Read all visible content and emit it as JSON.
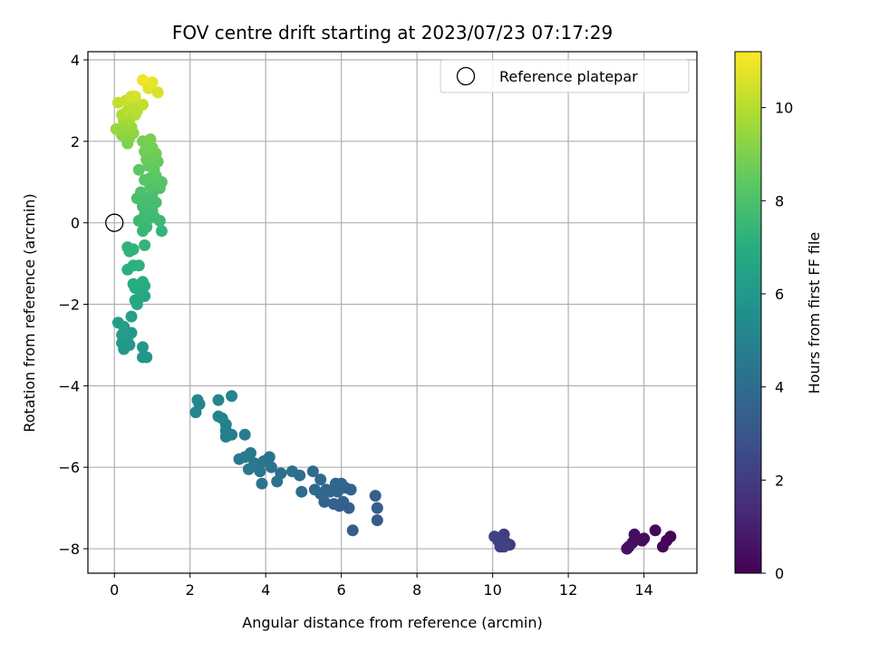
{
  "chart_data": {
    "type": "scatter",
    "title": "FOV centre drift starting at 2023/07/23 07:17:29",
    "xlabel": "Angular distance from reference (arcmin)",
    "ylabel": "Rotation from reference (arcmin)",
    "xlim": [
      -0.7,
      15.4
    ],
    "ylim": [
      -8.6,
      4.2
    ],
    "xticks": [
      0,
      2,
      4,
      6,
      8,
      10,
      12,
      14
    ],
    "yticks": [
      -8,
      -6,
      -4,
      -2,
      0,
      2,
      4
    ],
    "xtick_labels": [
      "0",
      "2",
      "4",
      "6",
      "8",
      "10",
      "12",
      "14"
    ],
    "ytick_labels": [
      "−8",
      "−6",
      "−4",
      "−2",
      "0",
      "2",
      "4"
    ],
    "grid": true,
    "legend": {
      "placement": "top-right",
      "label": "Reference platepar"
    },
    "reference_point": {
      "x": 0,
      "y": 0
    },
    "colorbar": {
      "label": "Hours from first FF file",
      "colormap": "viridis",
      "min": 0,
      "max": 11.2,
      "ticks": [
        0,
        2,
        4,
        6,
        8,
        10
      ],
      "tick_labels": [
        "0",
        "2",
        "4",
        "6",
        "8",
        "10"
      ]
    },
    "points": [
      {
        "x": 14.7,
        "y": -7.7,
        "c": 0.05
      },
      {
        "x": 14.6,
        "y": -7.8,
        "c": 0.1
      },
      {
        "x": 14.5,
        "y": -7.95,
        "c": 0.15
      },
      {
        "x": 14.3,
        "y": -7.55,
        "c": 0.2
      },
      {
        "x": 14.0,
        "y": -7.75,
        "c": 0.3
      },
      {
        "x": 13.95,
        "y": -7.8,
        "c": 0.35
      },
      {
        "x": 13.75,
        "y": -7.65,
        "c": 0.4
      },
      {
        "x": 13.7,
        "y": -7.85,
        "c": 0.45
      },
      {
        "x": 13.6,
        "y": -7.95,
        "c": 0.5
      },
      {
        "x": 13.55,
        "y": -8.0,
        "c": 0.55
      },
      {
        "x": 10.45,
        "y": -7.9,
        "c": 1.9
      },
      {
        "x": 10.35,
        "y": -7.85,
        "c": 1.95
      },
      {
        "x": 10.3,
        "y": -7.65,
        "c": 2.0
      },
      {
        "x": 10.25,
        "y": -7.75,
        "c": 2.05
      },
      {
        "x": 10.2,
        "y": -7.95,
        "c": 2.1
      },
      {
        "x": 10.15,
        "y": -7.8,
        "c": 2.15
      },
      {
        "x": 10.05,
        "y": -7.7,
        "c": 2.2
      },
      {
        "x": 10.3,
        "y": -7.95,
        "c": 2.25
      },
      {
        "x": 6.3,
        "y": -7.55,
        "c": 3.3
      },
      {
        "x": 6.95,
        "y": -7.3,
        "c": 3.3
      },
      {
        "x": 6.95,
        "y": -7.0,
        "c": 3.35
      },
      {
        "x": 6.9,
        "y": -6.7,
        "c": 3.35
      },
      {
        "x": 6.2,
        "y": -7.0,
        "c": 3.4
      },
      {
        "x": 6.05,
        "y": -6.85,
        "c": 3.45
      },
      {
        "x": 5.95,
        "y": -6.95,
        "c": 3.5
      },
      {
        "x": 5.8,
        "y": -6.9,
        "c": 3.5
      },
      {
        "x": 5.55,
        "y": -6.85,
        "c": 3.55
      },
      {
        "x": 6.25,
        "y": -6.55,
        "c": 3.6
      },
      {
        "x": 6.1,
        "y": -6.5,
        "c": 3.6
      },
      {
        "x": 6.0,
        "y": -6.4,
        "c": 3.65
      },
      {
        "x": 5.85,
        "y": -6.4,
        "c": 3.7
      },
      {
        "x": 5.9,
        "y": -6.6,
        "c": 3.7
      },
      {
        "x": 5.7,
        "y": -6.6,
        "c": 3.75
      },
      {
        "x": 5.6,
        "y": -6.55,
        "c": 3.8
      },
      {
        "x": 5.45,
        "y": -6.65,
        "c": 3.8
      },
      {
        "x": 5.3,
        "y": -6.55,
        "c": 3.85
      },
      {
        "x": 5.45,
        "y": -6.3,
        "c": 3.9
      },
      {
        "x": 5.25,
        "y": -6.1,
        "c": 3.95
      },
      {
        "x": 4.95,
        "y": -6.6,
        "c": 4.0
      },
      {
        "x": 4.9,
        "y": -6.2,
        "c": 4.05
      },
      {
        "x": 4.7,
        "y": -6.1,
        "c": 4.1
      },
      {
        "x": 4.4,
        "y": -6.15,
        "c": 4.15
      },
      {
        "x": 4.3,
        "y": -6.35,
        "c": 4.2
      },
      {
        "x": 4.15,
        "y": -6.0,
        "c": 4.25
      },
      {
        "x": 4.1,
        "y": -5.75,
        "c": 4.3
      },
      {
        "x": 3.95,
        "y": -5.85,
        "c": 4.35
      },
      {
        "x": 3.9,
        "y": -6.4,
        "c": 4.35
      },
      {
        "x": 3.85,
        "y": -6.1,
        "c": 4.4
      },
      {
        "x": 3.7,
        "y": -5.9,
        "c": 4.45
      },
      {
        "x": 3.55,
        "y": -6.05,
        "c": 4.5
      },
      {
        "x": 3.6,
        "y": -5.65,
        "c": 4.55
      },
      {
        "x": 3.45,
        "y": -5.75,
        "c": 4.6
      },
      {
        "x": 3.3,
        "y": -5.8,
        "c": 4.65
      },
      {
        "x": 3.45,
        "y": -5.2,
        "c": 4.7
      },
      {
        "x": 3.1,
        "y": -5.2,
        "c": 4.75
      },
      {
        "x": 2.95,
        "y": -5.1,
        "c": 4.8
      },
      {
        "x": 2.95,
        "y": -5.25,
        "c": 4.85
      },
      {
        "x": 2.95,
        "y": -4.95,
        "c": 4.9
      },
      {
        "x": 2.85,
        "y": -4.8,
        "c": 4.95
      },
      {
        "x": 2.75,
        "y": -4.75,
        "c": 5.0
      },
      {
        "x": 2.75,
        "y": -4.35,
        "c": 5.05
      },
      {
        "x": 3.1,
        "y": -4.25,
        "c": 5.05
      },
      {
        "x": 2.25,
        "y": -4.45,
        "c": 5.1
      },
      {
        "x": 2.2,
        "y": -4.35,
        "c": 5.15
      },
      {
        "x": 2.15,
        "y": -4.65,
        "c": 5.2
      },
      {
        "x": 0.85,
        "y": -3.3,
        "c": 5.9
      },
      {
        "x": 0.75,
        "y": -3.3,
        "c": 5.9
      },
      {
        "x": 0.75,
        "y": -3.05,
        "c": 5.95
      },
      {
        "x": 0.4,
        "y": -3.0,
        "c": 6.0
      },
      {
        "x": 0.25,
        "y": -3.1,
        "c": 6.0
      },
      {
        "x": 0.35,
        "y": -2.9,
        "c": 6.05
      },
      {
        "x": 0.2,
        "y": -2.95,
        "c": 6.1
      },
      {
        "x": 0.45,
        "y": -2.7,
        "c": 6.1
      },
      {
        "x": 0.3,
        "y": -2.75,
        "c": 6.15
      },
      {
        "x": 0.2,
        "y": -2.75,
        "c": 6.2
      },
      {
        "x": 0.25,
        "y": -2.55,
        "c": 6.25
      },
      {
        "x": 0.1,
        "y": -2.45,
        "c": 6.3
      },
      {
        "x": 0.45,
        "y": -2.3,
        "c": 6.4
      },
      {
        "x": 0.8,
        "y": -1.8,
        "c": 6.6
      },
      {
        "x": 0.65,
        "y": -1.85,
        "c": 6.65
      },
      {
        "x": 0.6,
        "y": -2.0,
        "c": 6.7
      },
      {
        "x": 0.55,
        "y": -1.9,
        "c": 6.75
      },
      {
        "x": 0.7,
        "y": -1.7,
        "c": 6.8
      },
      {
        "x": 0.55,
        "y": -1.6,
        "c": 6.85
      },
      {
        "x": 0.5,
        "y": -1.5,
        "c": 6.9
      },
      {
        "x": 0.8,
        "y": -1.55,
        "c": 6.95
      },
      {
        "x": 0.75,
        "y": -1.45,
        "c": 7.0
      },
      {
        "x": 0.35,
        "y": -1.15,
        "c": 7.05
      },
      {
        "x": 0.5,
        "y": -1.05,
        "c": 7.1
      },
      {
        "x": 0.65,
        "y": -1.05,
        "c": 7.15
      },
      {
        "x": 0.35,
        "y": -0.6,
        "c": 7.2
      },
      {
        "x": 0.4,
        "y": -0.7,
        "c": 7.25
      },
      {
        "x": 0.5,
        "y": -0.65,
        "c": 7.3
      },
      {
        "x": 0.8,
        "y": -0.55,
        "c": 7.35
      },
      {
        "x": 1.25,
        "y": -0.2,
        "c": 7.4
      },
      {
        "x": 0.75,
        "y": -0.2,
        "c": 7.45
      },
      {
        "x": 0.85,
        "y": -0.1,
        "c": 7.5
      },
      {
        "x": 0.65,
        "y": 0.05,
        "c": 7.55
      },
      {
        "x": 0.9,
        "y": 0.1,
        "c": 7.55
      },
      {
        "x": 1.2,
        "y": 0.05,
        "c": 7.6
      },
      {
        "x": 1.05,
        "y": 0.15,
        "c": 7.65
      },
      {
        "x": 0.8,
        "y": 0.2,
        "c": 7.7
      },
      {
        "x": 1.0,
        "y": 0.3,
        "c": 7.7
      },
      {
        "x": 0.75,
        "y": 0.4,
        "c": 7.75
      },
      {
        "x": 1.1,
        "y": 0.5,
        "c": 7.8
      },
      {
        "x": 0.85,
        "y": 0.55,
        "c": 7.85
      },
      {
        "x": 0.6,
        "y": 0.6,
        "c": 7.9
      },
      {
        "x": 1.0,
        "y": 0.7,
        "c": 7.95
      },
      {
        "x": 0.7,
        "y": 0.75,
        "c": 8.0
      },
      {
        "x": 1.2,
        "y": 0.85,
        "c": 8.05
      },
      {
        "x": 0.95,
        "y": 0.9,
        "c": 8.1
      },
      {
        "x": 1.15,
        "y": 0.95,
        "c": 8.15
      },
      {
        "x": 1.25,
        "y": 1.0,
        "c": 8.2
      },
      {
        "x": 0.8,
        "y": 1.05,
        "c": 8.25
      },
      {
        "x": 0.95,
        "y": 1.1,
        "c": 8.3
      },
      {
        "x": 1.1,
        "y": 1.15,
        "c": 8.35
      },
      {
        "x": 0.65,
        "y": 1.3,
        "c": 8.4
      },
      {
        "x": 1.05,
        "y": 1.3,
        "c": 8.45
      },
      {
        "x": 0.9,
        "y": 1.4,
        "c": 8.5
      },
      {
        "x": 1.15,
        "y": 1.5,
        "c": 8.55
      },
      {
        "x": 0.85,
        "y": 1.55,
        "c": 8.6
      },
      {
        "x": 1.0,
        "y": 1.65,
        "c": 8.65
      },
      {
        "x": 1.1,
        "y": 1.7,
        "c": 8.7
      },
      {
        "x": 0.8,
        "y": 1.75,
        "c": 8.75
      },
      {
        "x": 1.0,
        "y": 1.85,
        "c": 8.8
      },
      {
        "x": 0.75,
        "y": 2.0,
        "c": 8.85
      },
      {
        "x": 0.95,
        "y": 2.05,
        "c": 8.9
      },
      {
        "x": 0.35,
        "y": 1.95,
        "c": 9.0
      },
      {
        "x": 0.4,
        "y": 2.1,
        "c": 9.1
      },
      {
        "x": 0.2,
        "y": 2.15,
        "c": 9.2
      },
      {
        "x": 0.5,
        "y": 2.2,
        "c": 9.3
      },
      {
        "x": 0.3,
        "y": 2.3,
        "c": 9.4
      },
      {
        "x": 0.05,
        "y": 2.3,
        "c": 9.45
      },
      {
        "x": 0.45,
        "y": 2.35,
        "c": 9.5
      },
      {
        "x": 0.25,
        "y": 2.5,
        "c": 9.6
      },
      {
        "x": 0.4,
        "y": 2.55,
        "c": 9.7
      },
      {
        "x": 0.2,
        "y": 2.65,
        "c": 9.8
      },
      {
        "x": 0.55,
        "y": 2.65,
        "c": 9.9
      },
      {
        "x": 0.35,
        "y": 2.75,
        "c": 10.0
      },
      {
        "x": 0.6,
        "y": 2.75,
        "c": 10.05
      },
      {
        "x": 0.5,
        "y": 2.85,
        "c": 10.1
      },
      {
        "x": 0.75,
        "y": 2.9,
        "c": 10.15
      },
      {
        "x": 0.1,
        "y": 2.95,
        "c": 10.2
      },
      {
        "x": 0.3,
        "y": 3.0,
        "c": 10.3
      },
      {
        "x": 0.45,
        "y": 3.1,
        "c": 10.4
      },
      {
        "x": 0.55,
        "y": 3.1,
        "c": 10.5
      },
      {
        "x": 1.15,
        "y": 3.2,
        "c": 10.6
      },
      {
        "x": 0.9,
        "y": 3.3,
        "c": 10.7
      },
      {
        "x": 1.0,
        "y": 3.45,
        "c": 10.85
      },
      {
        "x": 0.75,
        "y": 3.5,
        "c": 11.0
      }
    ]
  }
}
